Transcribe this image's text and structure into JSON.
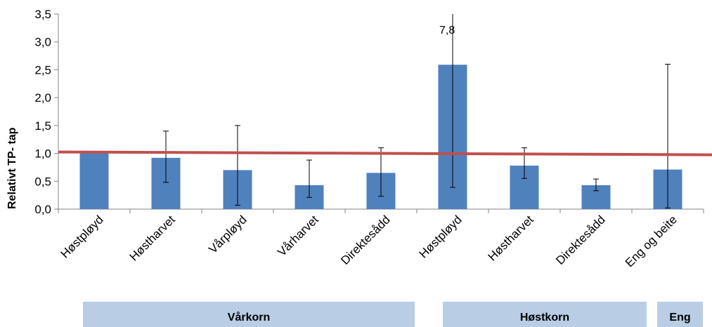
{
  "chart_data": {
    "type": "bar",
    "categories": [
      "Høstpløyd",
      "Høstharvet",
      "Vårpløyd",
      "Vårharvet",
      "Direktesådd",
      "Høstpløyd",
      "Høstharvet",
      "Direktesådd",
      "Eng og beite"
    ],
    "values": [
      1.0,
      0.92,
      0.7,
      0.43,
      0.65,
      2.59,
      0.78,
      0.43,
      0.71
    ],
    "error_low": [
      null,
      0.48,
      0.07,
      0.21,
      0.23,
      0.39,
      0.55,
      0.33,
      0.02
    ],
    "error_high": [
      null,
      1.4,
      1.5,
      0.88,
      1.1,
      3.5,
      1.1,
      0.54,
      2.6
    ],
    "title": "",
    "xlabel": "",
    "ylabel": "Relativt TP- tap",
    "ylim": [
      0,
      3.5
    ],
    "yticks": [
      "0,0",
      "0,5",
      "1,0",
      "1,5",
      "2,0",
      "2,5",
      "3,0",
      "3,5"
    ],
    "reference_line": 1.0,
    "annotation": "7,8",
    "groups": [
      {
        "label": "Vårkorn",
        "categories": [
          0,
          1,
          2,
          3,
          4
        ]
      },
      {
        "label": "Høstkorn",
        "categories": [
          5,
          6,
          7
        ]
      },
      {
        "label": "Eng",
        "categories": [
          8
        ]
      }
    ],
    "colors": {
      "bar": "#4f81bd",
      "reference_line": "#c0504d",
      "group_band": "#b9cde5"
    }
  }
}
